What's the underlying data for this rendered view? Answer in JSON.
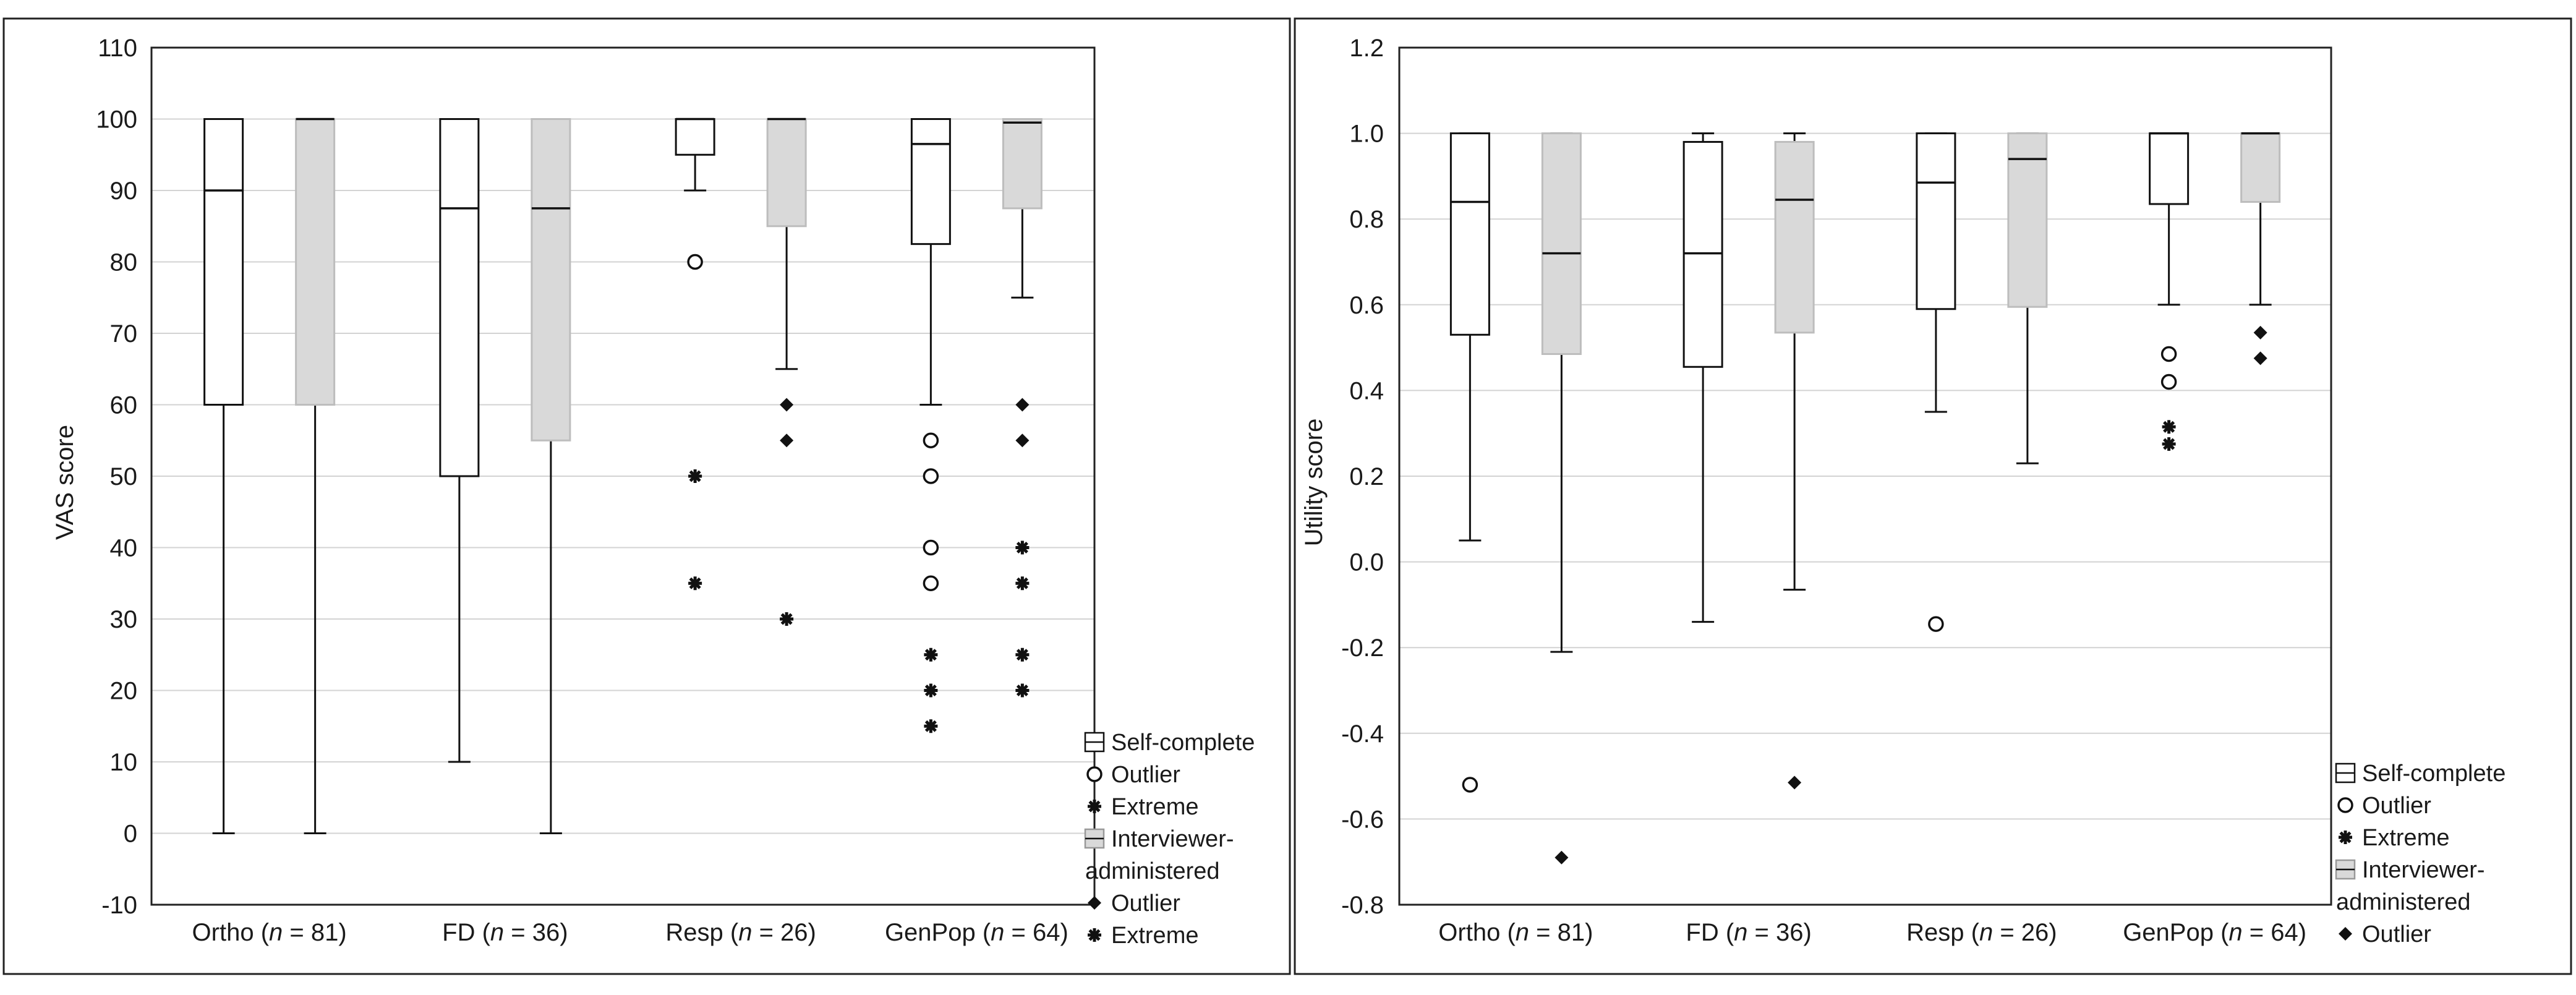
{
  "chart_data": [
    {
      "type": "boxplot",
      "title": "",
      "xlabel": "",
      "ylabel": "VAS score",
      "ylim": [
        -10,
        110
      ],
      "yticks": [
        -10,
        0,
        10,
        20,
        30,
        40,
        50,
        60,
        70,
        80,
        90,
        100,
        110
      ],
      "grid": true,
      "legend_position": "bottom-right",
      "categories": [
        {
          "name": "Ortho",
          "n": "81"
        },
        {
          "name": "FD",
          "n": "36"
        },
        {
          "name": "Resp",
          "n": "26"
        },
        {
          "name": "GenPop",
          "n": "64"
        }
      ],
      "series": [
        {
          "name": "Self-complete",
          "fill": "#ffffff",
          "boxes": [
            {
              "category": "Ortho",
              "whisker_low": 0,
              "q1": 60,
              "median": 90,
              "q3": 100,
              "whisker_high": 100,
              "outliers": [],
              "extremes": []
            },
            {
              "category": "FD",
              "whisker_low": 10,
              "q1": 50,
              "median": 87.5,
              "q3": 100,
              "whisker_high": 100,
              "outliers": [],
              "extremes": []
            },
            {
              "category": "Resp",
              "whisker_low": 90,
              "q1": 95,
              "median": 100,
              "q3": 100,
              "whisker_high": 100,
              "outliers": [
                80
              ],
              "extremes": [
                50,
                35
              ]
            },
            {
              "category": "GenPop",
              "whisker_low": 60,
              "q1": 82.5,
              "median": 96.5,
              "q3": 100,
              "whisker_high": 100,
              "outliers": [
                55,
                50,
                40,
                35
              ],
              "extremes": [
                25,
                20,
                15
              ]
            }
          ]
        },
        {
          "name": "Interviewer-administered",
          "fill": "#d9d9d9",
          "boxes": [
            {
              "category": "Ortho",
              "whisker_low": 0,
              "q1": 60,
              "median": 100,
              "q3": 100,
              "whisker_high": 100,
              "outliers": [],
              "extremes": []
            },
            {
              "category": "FD",
              "whisker_low": 0,
              "q1": 55,
              "median": 87.5,
              "q3": 100,
              "whisker_high": 100,
              "outliers": [],
              "extremes": []
            },
            {
              "category": "Resp",
              "whisker_low": 65,
              "q1": 85,
              "median": 100,
              "q3": 100,
              "whisker_high": 100,
              "outliers": [
                60,
                55
              ],
              "extremes": [
                30
              ]
            },
            {
              "category": "GenPop",
              "whisker_low": 75,
              "q1": 87.5,
              "median": 99.5,
              "q3": 100,
              "whisker_high": 100,
              "outliers": [
                60,
                55
              ],
              "extremes": [
                40,
                35,
                25,
                20
              ]
            }
          ]
        }
      ],
      "legend": [
        "Self-complete",
        "Outlier",
        "Extreme",
        "Interviewer-administered",
        "Outlier",
        "Extreme"
      ]
    },
    {
      "type": "boxplot",
      "title": "",
      "xlabel": "",
      "ylabel": "Utility score",
      "ylim": [
        -0.8,
        1.2
      ],
      "yticks": [
        -0.8,
        -0.6,
        -0.4,
        -0.2,
        0.0,
        0.2,
        0.4,
        0.6,
        0.8,
        1.0,
        1.2
      ],
      "ytick_labels": [
        "-0.8",
        "-0.6",
        "-0.4",
        "-0.2",
        "0.0",
        "0.2",
        "0.4",
        "0.6",
        "0.8",
        "1.0",
        "1.2"
      ],
      "grid": true,
      "legend_position": "bottom-right",
      "categories": [
        {
          "name": "Ortho",
          "n": "81"
        },
        {
          "name": "FD",
          "n": "36"
        },
        {
          "name": "Resp",
          "n": "26"
        },
        {
          "name": "GenPop",
          "n": "64"
        }
      ],
      "series": [
        {
          "name": "Self-complete",
          "fill": "#ffffff",
          "boxes": [
            {
              "category": "Ortho",
              "whisker_low": 0.05,
              "q1": 0.53,
              "median": 0.84,
              "q3": 1.0,
              "whisker_high": 1.0,
              "outliers": [
                -0.52
              ],
              "extremes": []
            },
            {
              "category": "FD",
              "whisker_low": -0.14,
              "q1": 0.455,
              "median": 0.72,
              "q3": 0.98,
              "whisker_high": 1.0,
              "outliers": [],
              "extremes": []
            },
            {
              "category": "Resp",
              "whisker_low": 0.35,
              "q1": 0.59,
              "median": 0.885,
              "q3": 1.0,
              "whisker_high": 1.0,
              "outliers": [
                -0.145
              ],
              "extremes": []
            },
            {
              "category": "GenPop",
              "whisker_low": 0.6,
              "q1": 0.835,
              "median": 1.0,
              "q3": 1.0,
              "whisker_high": 1.0,
              "outliers": [
                0.485,
                0.42
              ],
              "extremes": [
                0.315,
                0.275
              ]
            }
          ]
        },
        {
          "name": "Interviewer-administered",
          "fill": "#d9d9d9",
          "boxes": [
            {
              "category": "Ortho",
              "whisker_low": -0.21,
              "q1": 0.485,
              "median": 0.72,
              "q3": 1.0,
              "whisker_high": 1.0,
              "outliers": [
                -0.69
              ],
              "extremes": []
            },
            {
              "category": "FD",
              "whisker_low": -0.065,
              "q1": 0.535,
              "median": 0.845,
              "q3": 0.98,
              "whisker_high": 1.0,
              "outliers": [
                -0.515
              ],
              "extremes": []
            },
            {
              "category": "Resp",
              "whisker_low": 0.23,
              "q1": 0.595,
              "median": 0.94,
              "q3": 1.0,
              "whisker_high": 1.0,
              "outliers": [],
              "extremes": []
            },
            {
              "category": "GenPop",
              "whisker_low": 0.6,
              "q1": 0.84,
              "median": 1.0,
              "q3": 1.0,
              "whisker_high": 1.0,
              "outliers": [
                0.535,
                0.475
              ],
              "extremes": []
            }
          ]
        }
      ],
      "legend": [
        "Self-complete",
        "Outlier",
        "Extreme",
        "Interviewer-administered",
        "Outlier"
      ]
    }
  ]
}
